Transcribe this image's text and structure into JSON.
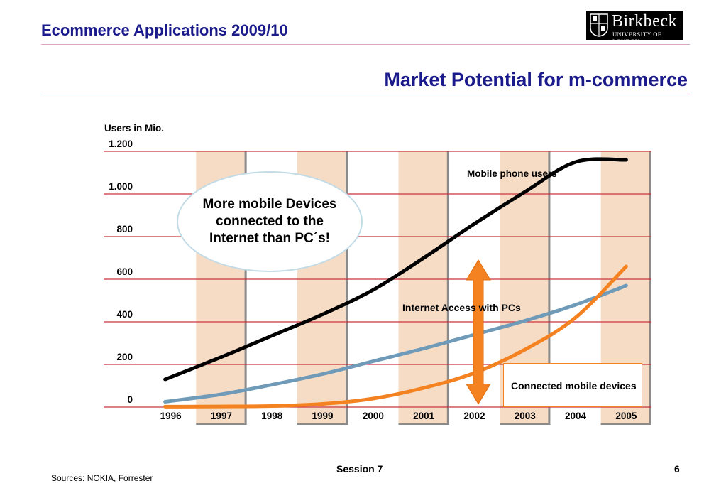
{
  "header": {
    "course_title": "Ecommerce Applications 2009/10",
    "logo": {
      "name": "Birkbeck",
      "subtitle": "UNIVERSITY OF LONDON"
    }
  },
  "slide_title": "Market Potential for m-commerce",
  "callout": {
    "text": "More mobile Devices\nconnected to the\nInternet than PC´s!"
  },
  "chart_data": {
    "type": "line",
    "ylabel": "Users in Mio.",
    "xlabel": "",
    "ylim": [
      0,
      1200
    ],
    "yticks": [
      0,
      200,
      400,
      600,
      800,
      1000,
      1200
    ],
    "ytick_labels": [
      "0",
      "200",
      "400",
      "600",
      "800",
      "1.000",
      "1.200"
    ],
    "categories": [
      "1996",
      "1997",
      "1998",
      "1999",
      "2000",
      "2001",
      "2002",
      "2003",
      "2004",
      "2005"
    ],
    "shaded_years": [
      "1997",
      "1999",
      "2001",
      "2003",
      "2005"
    ],
    "grid": true,
    "series": [
      {
        "name": "Mobile phone  users",
        "color": "#000000",
        "values": [
          130,
          235,
          335,
          435,
          550,
          700,
          860,
          1010,
          1150,
          1160
        ]
      },
      {
        "name": "Internet Access with PCs",
        "color": "#6f9ab8",
        "values": [
          25,
          60,
          105,
          155,
          215,
          275,
          340,
          405,
          480,
          570
        ]
      },
      {
        "name": "Connected mobile devices",
        "color": "#f58220",
        "values": [
          2,
          3,
          5,
          15,
          40,
          90,
          160,
          270,
          420,
          660
        ]
      }
    ],
    "annotation": {
      "type": "double-arrow",
      "color": "#f58220"
    }
  },
  "footer": {
    "sources": "Sources: NOKIA, Forrester",
    "session": "Session 7",
    "page": "6"
  }
}
